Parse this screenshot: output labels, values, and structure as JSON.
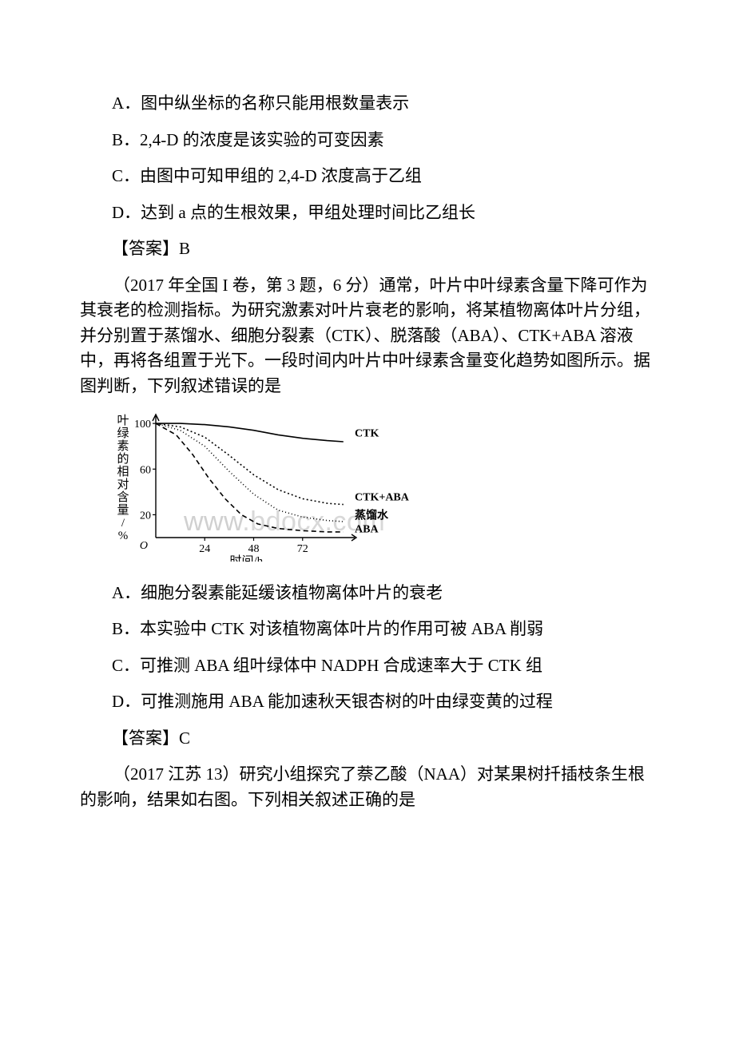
{
  "q1": {
    "options": {
      "A": "A．图中纵坐标的名称只能用根数量表示",
      "B": "B．2,4-D 的浓度是该实验的可变因素",
      "C": "C．由图中可知甲组的 2,4-D 浓度高于乙组",
      "D": "D．达到 a 点的生根效果，甲组处理时间比乙组长"
    },
    "answer": "【答案】B"
  },
  "q2": {
    "intro": "（2017 年全国 I 卷，第 3 题，6 分）通常，叶片中叶绿素含量下降可作为其衰老的检测指标。为研究激素对叶片衰老的影响，将某植物离体叶片分组，并分别置于蒸馏水、细胞分裂素（CTK）、脱落酸（ABA）、CTK+ABA 溶液中，再将各组置于光下。一段时间内叶片中叶绿素含量变化趋势如图所示。据图判断，下列叙述错误的是",
    "options": {
      "A": "A．细胞分裂素能延缓该植物离体叶片的衰老",
      "B": "B．本实验中 CTK 对该植物离体叶片的作用可被 ABA 削弱",
      "C": "C．可推测 ABA 组叶绿体中 NADPH 合成速率大于 CTK 组",
      "D": "D．可推测施用 ABA 能加速秋天银杏树的叶由绿变黄的过程"
    },
    "answer": "【答案】C"
  },
  "q3": {
    "intro": "（2017 江苏 13）研究小组探究了萘乙酸（NAA）对某果树扦插枝条生根的影响，结果如右图。下列相关叙述正确的是"
  },
  "watermark": {
    "text_head": "www",
    "text_tail": ".bdocx.com"
  },
  "chart": {
    "type": "line",
    "y_axis_label": "叶绿素的相对含量/%",
    "x_axis_label": "时间/h",
    "x_ticks": [
      24,
      48,
      72
    ],
    "y_ticks": [
      20,
      60,
      100
    ],
    "xlim": [
      0,
      96
    ],
    "ylim": [
      0,
      105
    ],
    "origin_label": "O",
    "background_color": "#ffffff",
    "axis_color": "#000000",
    "tick_fontsize": 14,
    "label_fontsize": 15,
    "series": [
      {
        "name": "CTK",
        "label": "CTK",
        "dash": "none",
        "color": "#000000",
        "width": 1.6,
        "points": [
          [
            0,
            100
          ],
          [
            12,
            100
          ],
          [
            24,
            99
          ],
          [
            36,
            97
          ],
          [
            48,
            94
          ],
          [
            60,
            90
          ],
          [
            72,
            87
          ],
          [
            84,
            85
          ],
          [
            92,
            84
          ]
        ]
      },
      {
        "name": "CTK+ABA",
        "label": "CTK+ABA",
        "dash": "2,3",
        "color": "#000000",
        "width": 1.6,
        "points": [
          [
            0,
            100
          ],
          [
            12,
            97
          ],
          [
            24,
            88
          ],
          [
            36,
            72
          ],
          [
            48,
            55
          ],
          [
            60,
            42
          ],
          [
            72,
            34
          ],
          [
            84,
            30
          ],
          [
            92,
            29
          ]
        ]
      },
      {
        "name": "蒸馏水",
        "label": "蒸馏水",
        "dash": "1,3",
        "color": "#000000",
        "width": 1.6,
        "points": [
          [
            0,
            100
          ],
          [
            12,
            94
          ],
          [
            24,
            80
          ],
          [
            36,
            58
          ],
          [
            48,
            38
          ],
          [
            60,
            24
          ],
          [
            72,
            18
          ],
          [
            84,
            15
          ],
          [
            92,
            14
          ]
        ]
      },
      {
        "name": "ABA",
        "label": "ABA",
        "dash": "6,4",
        "color": "#000000",
        "width": 1.6,
        "points": [
          [
            0,
            100
          ],
          [
            10,
            90
          ],
          [
            18,
            73
          ],
          [
            26,
            52
          ],
          [
            34,
            34
          ],
          [
            42,
            20
          ],
          [
            50,
            12
          ],
          [
            60,
            8
          ],
          [
            72,
            6
          ],
          [
            84,
            5
          ],
          [
            92,
            5
          ]
        ]
      }
    ],
    "series_label_positions": {
      "CTK": [
        96,
        92
      ],
      "CTK+ABA": [
        96,
        36
      ],
      "蒸馏水": [
        96,
        20
      ],
      "ABA": [
        96,
        8
      ]
    }
  }
}
